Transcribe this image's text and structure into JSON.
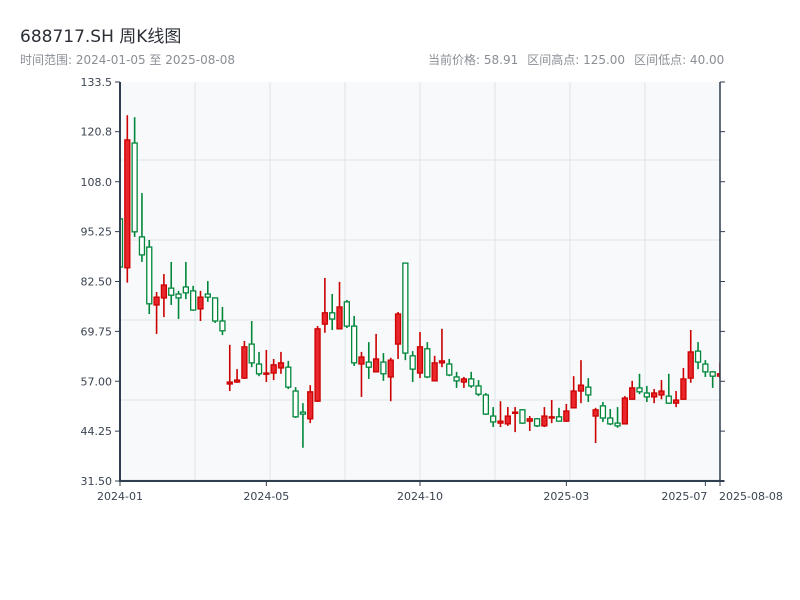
{
  "header": {
    "title": "688717.SH 周K线图",
    "range_label": "时间范围: 2024-01-05 至 2025-08-08",
    "current_price": "当前价格: 58.91",
    "range_high": "区间高点: 125.00",
    "range_low": "区间低点: 40.00"
  },
  "chart_data": {
    "type": "candlestick",
    "title": "688717.SH 周K线图",
    "ylim": [
      31.5,
      133.5
    ],
    "y_ticks": [
      "133.5",
      "120.8",
      "108.0",
      "95.25",
      "82.50",
      "69.75",
      "57.00",
      "44.25",
      "31.50"
    ],
    "x_ticks": [
      {
        "index": 0,
        "label": "2024-01"
      },
      {
        "index": 20,
        "label": "2024-05"
      },
      {
        "index": 41,
        "label": "2024-10"
      },
      {
        "index": 61,
        "label": "2025-03"
      },
      {
        "index": 80,
        "label": "2025-07"
      },
      {
        "index": 82,
        "label": "2025-08-08"
      }
    ],
    "grid": true,
    "colors": {
      "up": "#e8262b",
      "up_stroke": "#cc0000",
      "down": "#00873a",
      "background": "#f7f9fb"
    },
    "ohlc": [
      [
        98.5,
        99.0,
        86.0,
        86.2
      ],
      [
        86.0,
        125.0,
        82.2,
        118.7
      ],
      [
        117.9,
        124.5,
        93.9,
        95.2
      ],
      [
        93.9,
        105.1,
        87.5,
        89.3
      ],
      [
        91.3,
        93.1,
        74.2,
        76.8
      ],
      [
        76.5,
        79.8,
        69.1,
        78.5
      ],
      [
        78.3,
        84.4,
        73.4,
        81.6
      ],
      [
        80.8,
        87.5,
        76.5,
        79.0
      ],
      [
        79.3,
        80.1,
        72.9,
        78.3
      ],
      [
        81.1,
        87.5,
        78.0,
        79.6
      ],
      [
        80.1,
        81.4,
        75.0,
        75.2
      ],
      [
        75.5,
        80.1,
        72.4,
        78.5
      ],
      [
        79.3,
        82.6,
        77.3,
        78.5
      ],
      [
        78.3,
        78.3,
        71.9,
        72.4
      ],
      [
        72.4,
        76.0,
        68.8,
        69.9
      ],
      [
        56.3,
        66.3,
        54.5,
        56.8
      ],
      [
        56.8,
        60.1,
        56.6,
        57.3
      ],
      [
        57.8,
        67.3,
        57.6,
        65.8
      ],
      [
        66.5,
        72.4,
        60.6,
        61.7
      ],
      [
        61.4,
        64.5,
        58.3,
        58.9
      ],
      [
        58.9,
        65.0,
        56.8,
        59.1
      ],
      [
        59.1,
        62.7,
        57.3,
        61.2
      ],
      [
        60.4,
        64.5,
        58.9,
        61.7
      ],
      [
        60.6,
        62.2,
        55.0,
        55.5
      ],
      [
        54.5,
        55.5,
        47.6,
        47.9
      ],
      [
        49.1,
        51.4,
        40.0,
        48.6
      ],
      [
        47.4,
        56.0,
        46.3,
        54.3
      ],
      [
        51.9,
        71.1,
        51.7,
        70.4
      ],
      [
        71.6,
        83.4,
        69.4,
        74.5
      ],
      [
        74.5,
        79.3,
        70.1,
        72.9
      ],
      [
        70.4,
        82.4,
        70.4,
        76.0
      ],
      [
        77.3,
        77.8,
        70.6,
        71.1
      ],
      [
        71.1,
        73.7,
        60.9,
        61.7
      ],
      [
        61.4,
        64.5,
        53.0,
        63.2
      ],
      [
        61.9,
        67.0,
        57.6,
        60.6
      ],
      [
        59.4,
        69.1,
        59.4,
        62.7
      ],
      [
        61.9,
        64.2,
        57.1,
        58.9
      ],
      [
        58.1,
        63.0,
        51.9,
        62.4
      ],
      [
        66.5,
        74.7,
        62.7,
        74.2
      ],
      [
        87.2,
        87.2,
        62.4,
        64.2
      ],
      [
        63.5,
        64.7,
        56.8,
        60.1
      ],
      [
        59.1,
        69.6,
        57.8,
        65.8
      ],
      [
        65.3,
        67.0,
        57.8,
        58.1
      ],
      [
        57.1,
        63.5,
        57.1,
        61.7
      ],
      [
        61.7,
        70.4,
        60.6,
        62.2
      ],
      [
        61.4,
        62.7,
        58.3,
        58.6
      ],
      [
        58.1,
        59.4,
        55.3,
        57.1
      ],
      [
        56.8,
        58.1,
        55.3,
        57.6
      ],
      [
        57.6,
        59.4,
        55.3,
        55.8
      ],
      [
        55.8,
        57.3,
        53.2,
        53.7
      ],
      [
        53.5,
        54.0,
        48.4,
        48.6
      ],
      [
        48.1,
        50.4,
        45.3,
        46.6
      ],
      [
        46.3,
        51.9,
        45.3,
        46.8
      ],
      [
        46.1,
        50.4,
        45.6,
        48.1
      ],
      [
        48.9,
        50.4,
        44.0,
        49.1
      ],
      [
        49.7,
        49.9,
        46.1,
        46.3
      ],
      [
        46.8,
        48.1,
        44.3,
        47.4
      ],
      [
        47.4,
        47.6,
        45.3,
        45.6
      ],
      [
        45.6,
        50.4,
        45.3,
        48.1
      ],
      [
        47.6,
        52.2,
        46.3,
        47.9
      ],
      [
        47.9,
        50.2,
        46.8,
        46.8
      ],
      [
        46.8,
        51.2,
        46.6,
        49.4
      ],
      [
        50.2,
        58.3,
        50.2,
        54.5
      ],
      [
        54.5,
        62.4,
        51.4,
        56.0
      ],
      [
        55.5,
        57.8,
        51.7,
        53.5
      ],
      [
        48.1,
        50.2,
        41.2,
        49.7
      ],
      [
        50.7,
        51.7,
        46.6,
        47.6
      ],
      [
        47.6,
        49.9,
        45.8,
        46.1
      ],
      [
        46.3,
        50.4,
        45.1,
        45.6
      ],
      [
        46.1,
        53.2,
        46.1,
        52.7
      ],
      [
        52.4,
        57.1,
        52.4,
        55.3
      ],
      [
        55.3,
        58.9,
        53.7,
        54.3
      ],
      [
        54.0,
        55.8,
        51.7,
        53.0
      ],
      [
        53.0,
        55.0,
        51.4,
        54.0
      ],
      [
        53.5,
        57.3,
        52.4,
        54.5
      ],
      [
        53.2,
        58.9,
        51.2,
        51.4
      ],
      [
        51.4,
        54.5,
        50.4,
        52.2
      ],
      [
        52.4,
        60.4,
        52.4,
        57.6
      ],
      [
        57.8,
        70.1,
        56.6,
        64.5
      ],
      [
        64.7,
        67.0,
        60.1,
        61.9
      ],
      [
        61.4,
        62.4,
        58.1,
        59.4
      ],
      [
        59.4,
        59.6,
        55.3,
        58.3
      ],
      [
        58.3,
        61.7,
        57.8,
        58.91
      ]
    ]
  }
}
